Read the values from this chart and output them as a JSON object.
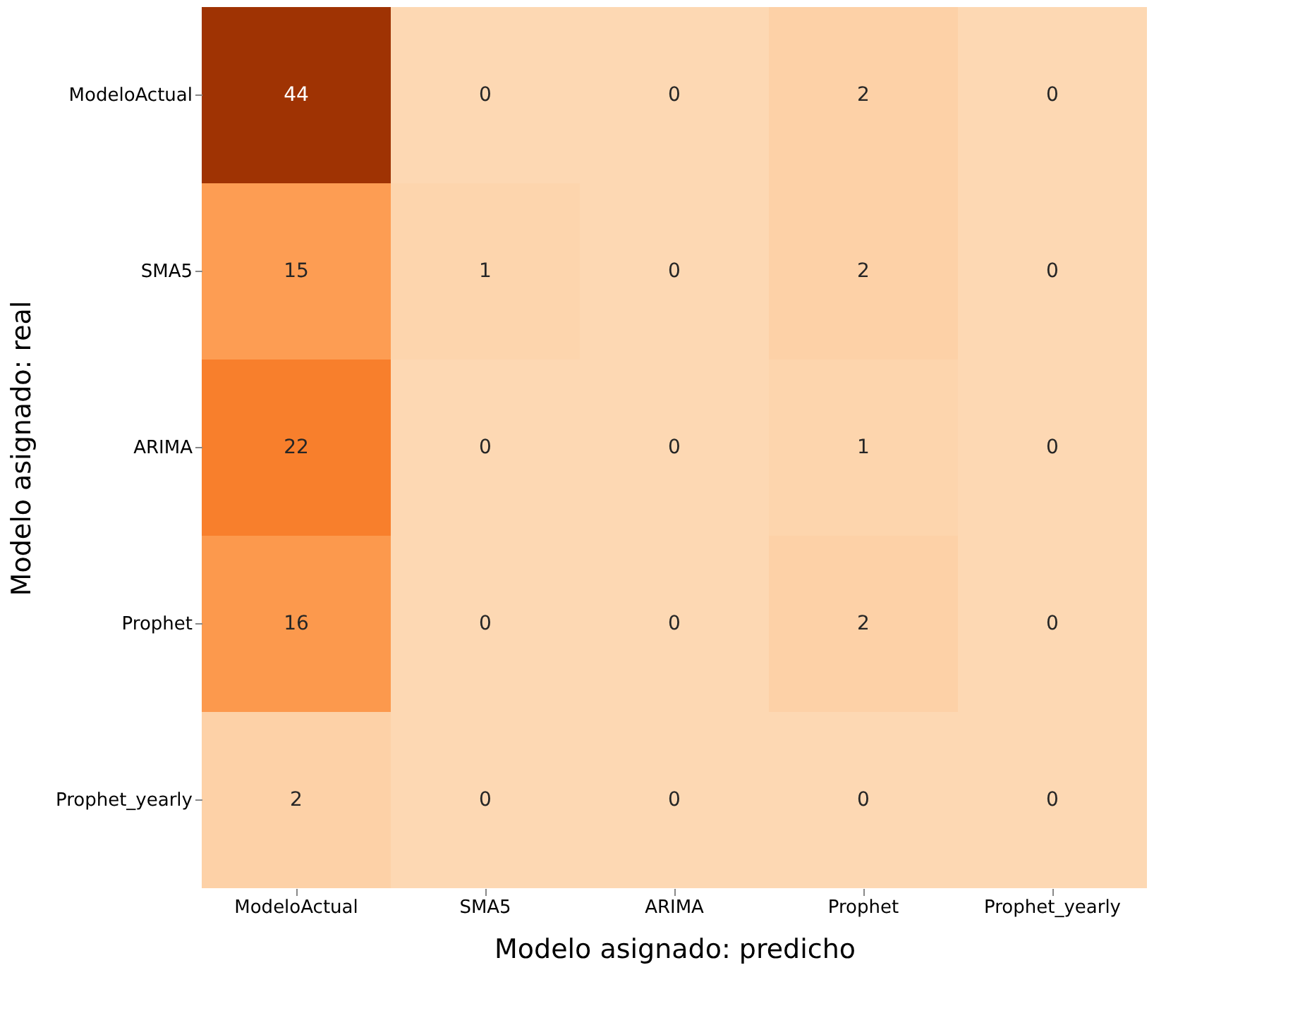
{
  "chart_data": {
    "type": "heatmap",
    "xlabel": "Modelo asignado: predicho",
    "ylabel": "Modelo asignado: real",
    "categories": [
      "ModeloActual",
      "SMA5",
      "ARIMA",
      "Prophet",
      "Prophet_yearly"
    ],
    "y_categories": [
      "ModeloActual",
      "SMA5",
      "ARIMA",
      "Prophet",
      "Prophet_yearly"
    ],
    "cells": [
      [
        44,
        0,
        0,
        2,
        0
      ],
      [
        15,
        1,
        0,
        2,
        0
      ],
      [
        22,
        0,
        0,
        1,
        0
      ],
      [
        16,
        0,
        0,
        2,
        0
      ],
      [
        2,
        0,
        0,
        0,
        0
      ]
    ],
    "data_labels": true,
    "legend": false,
    "grid": false
  }
}
